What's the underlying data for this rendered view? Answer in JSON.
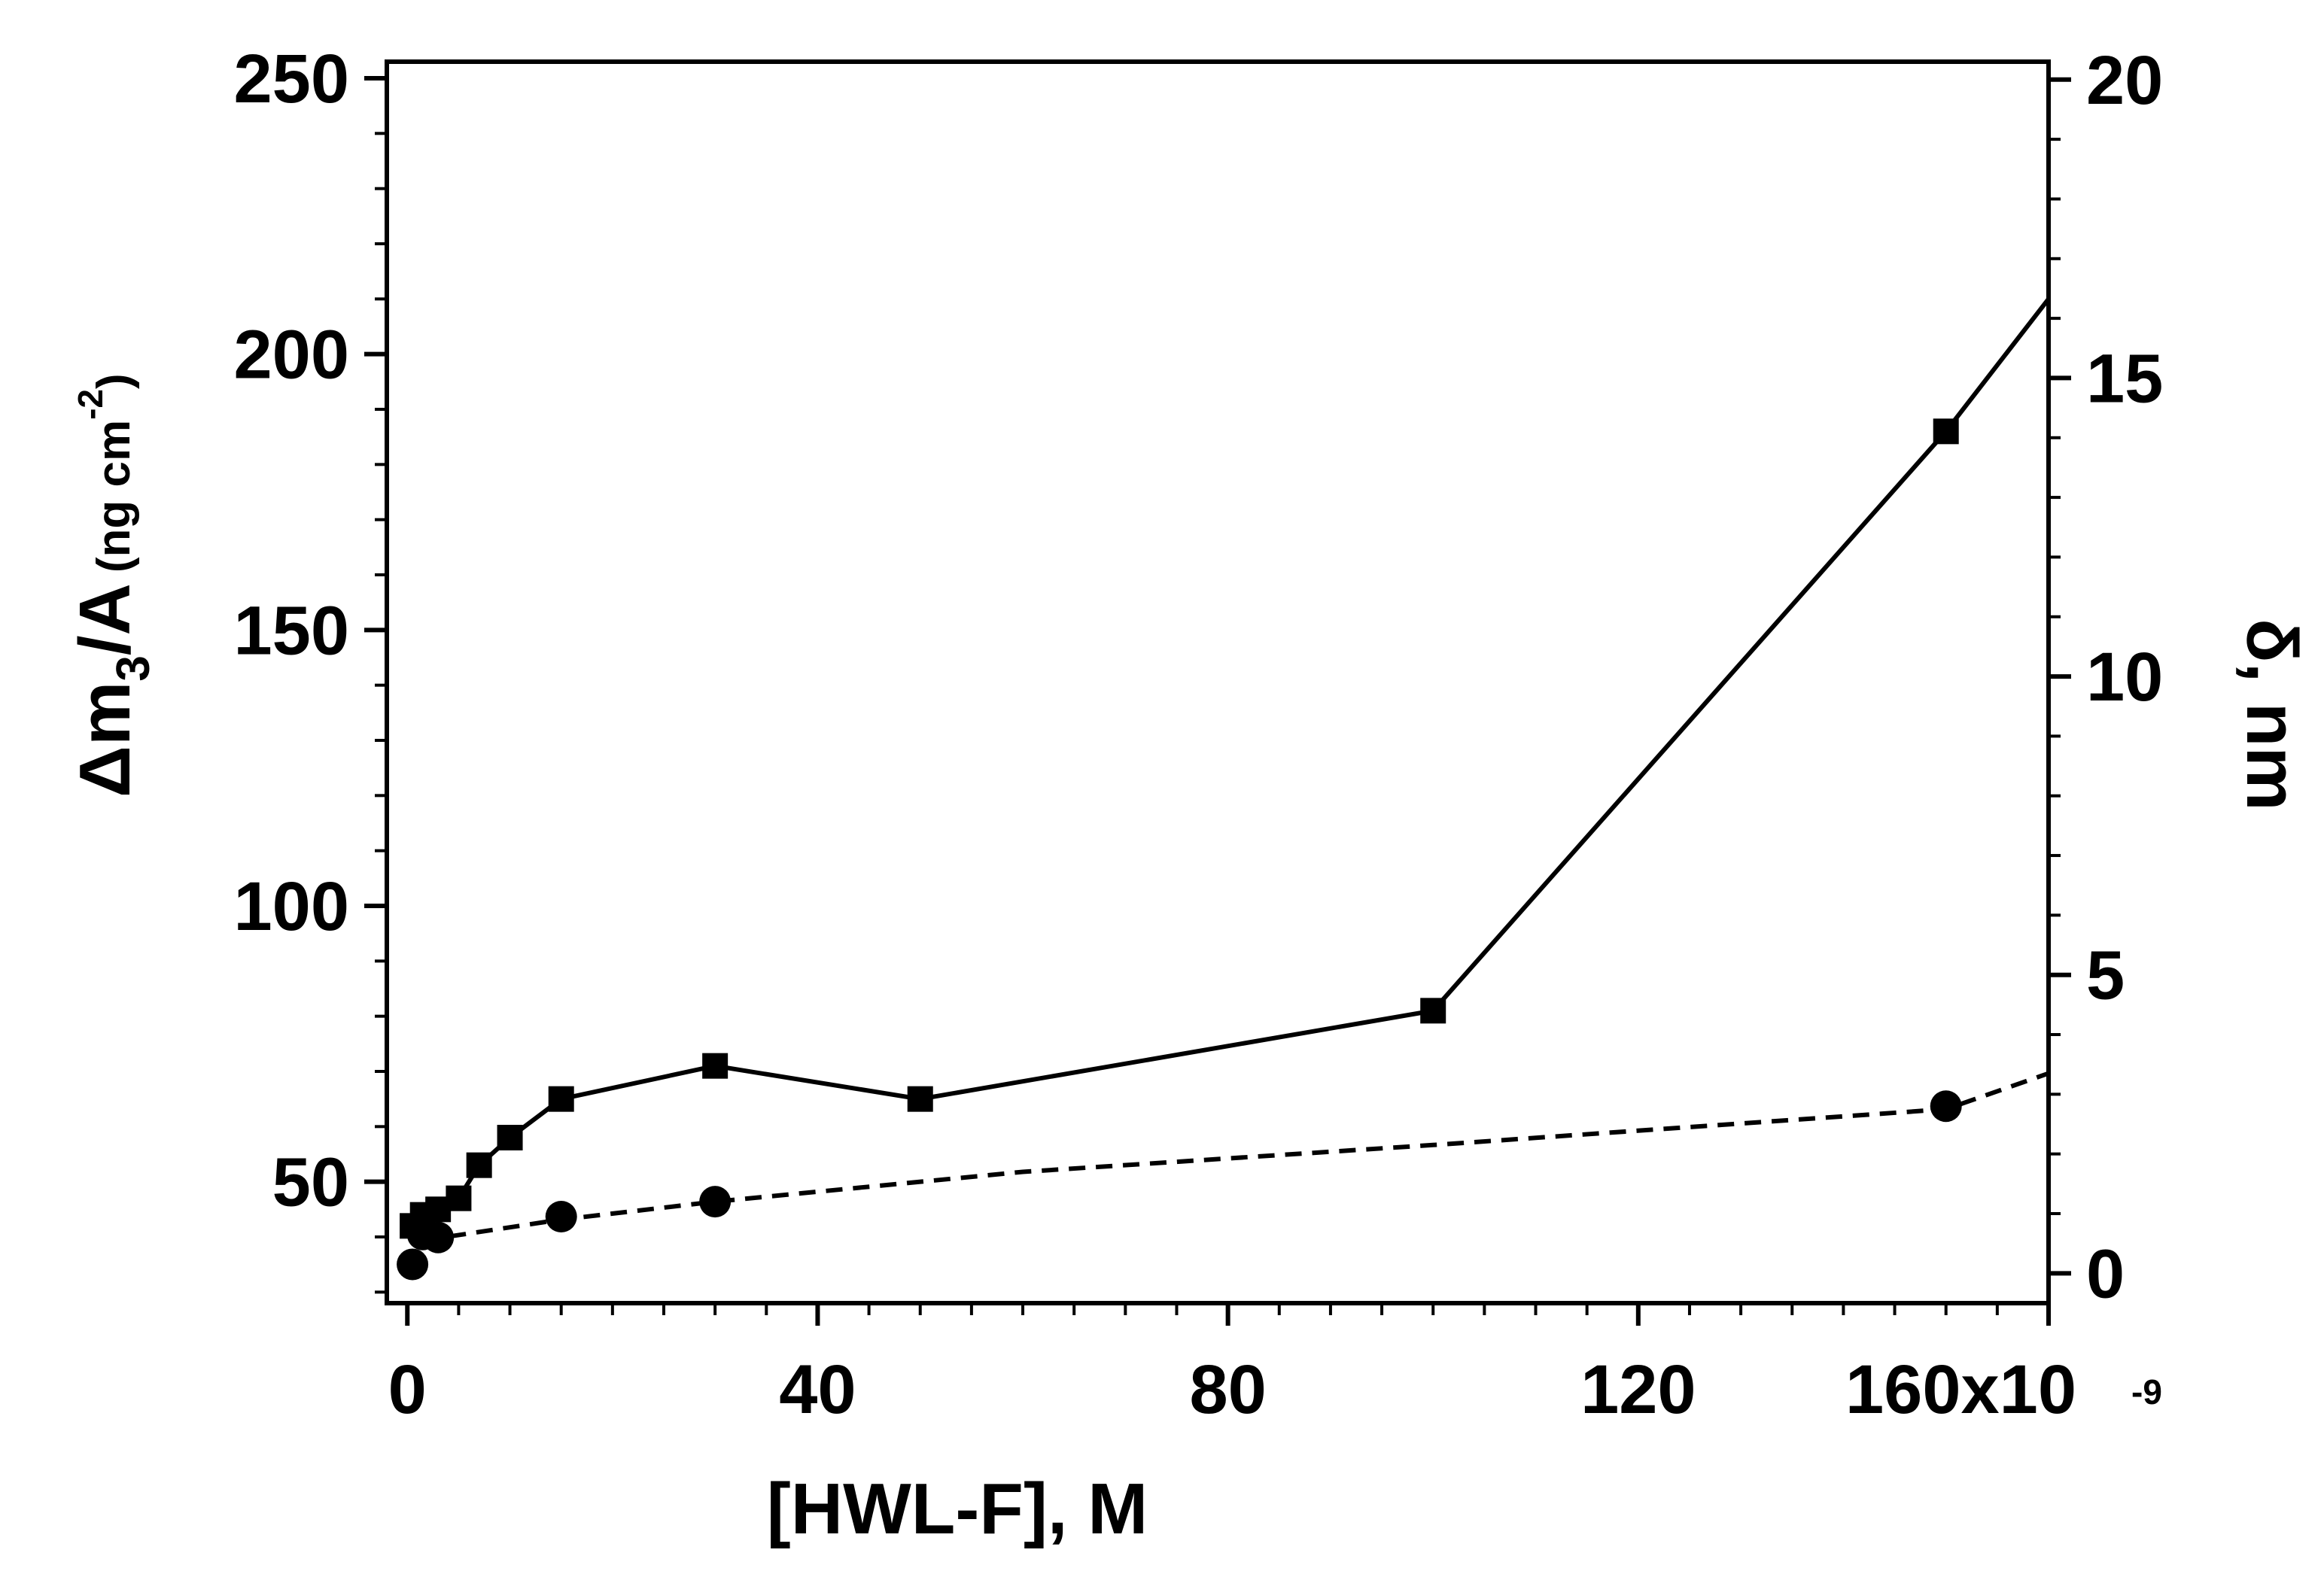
{
  "chart_data": {
    "type": "line",
    "x": {
      "label": "[HWL-F], M",
      "ticks": [
        0,
        40,
        80,
        120,
        160
      ],
      "tick_labels": [
        "0",
        "40",
        "80",
        "120",
        "160x10"
      ],
      "exponent_label": "-9",
      "range": [
        -2,
        160
      ]
    },
    "y_left": {
      "label_main": "Δm",
      "label_sub": "3",
      "label_rest": "/A",
      "label_unit": "(ng cm",
      "label_unit_sup": "-2",
      "label_unit_close": ")",
      "ticks": [
        50,
        100,
        150,
        200,
        250
      ],
      "tick_labels": [
        "50",
        "100",
        "150",
        "200",
        "250"
      ],
      "range": [
        28,
        253
      ]
    },
    "y_right": {
      "label": "δ, nm",
      "ticks": [
        0,
        5,
        10,
        15,
        20
      ],
      "tick_labels": [
        "0",
        "5",
        "10",
        "15",
        "20"
      ],
      "range": [
        -0.5,
        20.3
      ]
    },
    "series": [
      {
        "name": "Δm3/A",
        "axis": "left",
        "marker": "square",
        "line": "solid",
        "points": [
          [
            0.5,
            42
          ],
          [
            1.5,
            44
          ],
          [
            3,
            45
          ],
          [
            5,
            47
          ],
          [
            7,
            53
          ],
          [
            10,
            58
          ],
          [
            15,
            65
          ],
          [
            30,
            71
          ],
          [
            50,
            65
          ],
          [
            100,
            81
          ],
          [
            150,
            186
          ]
        ],
        "line_points": [
          [
            0.5,
            42
          ],
          [
            1.5,
            44
          ],
          [
            3,
            45
          ],
          [
            5,
            47
          ],
          [
            7,
            53
          ],
          [
            10,
            58
          ],
          [
            15,
            65
          ],
          [
            30,
            71
          ],
          [
            50,
            65
          ],
          [
            100,
            81
          ],
          [
            150,
            186
          ],
          [
            160,
            210
          ]
        ]
      },
      {
        "name": "δ",
        "axis": "right",
        "marker": "circle",
        "line": "dashed",
        "points": [
          [
            0.5,
            0.15
          ],
          [
            1.5,
            0.65
          ],
          [
            3,
            0.6
          ],
          [
            15,
            0.95
          ],
          [
            30,
            1.2
          ],
          [
            150,
            2.8
          ]
        ],
        "line_points": [
          [
            1.5,
            0.55
          ],
          [
            15,
            0.9
          ],
          [
            30,
            1.2
          ],
          [
            60,
            1.7
          ],
          [
            100,
            2.15
          ],
          [
            150,
            2.75
          ],
          [
            160,
            3.35
          ]
        ]
      }
    ]
  }
}
